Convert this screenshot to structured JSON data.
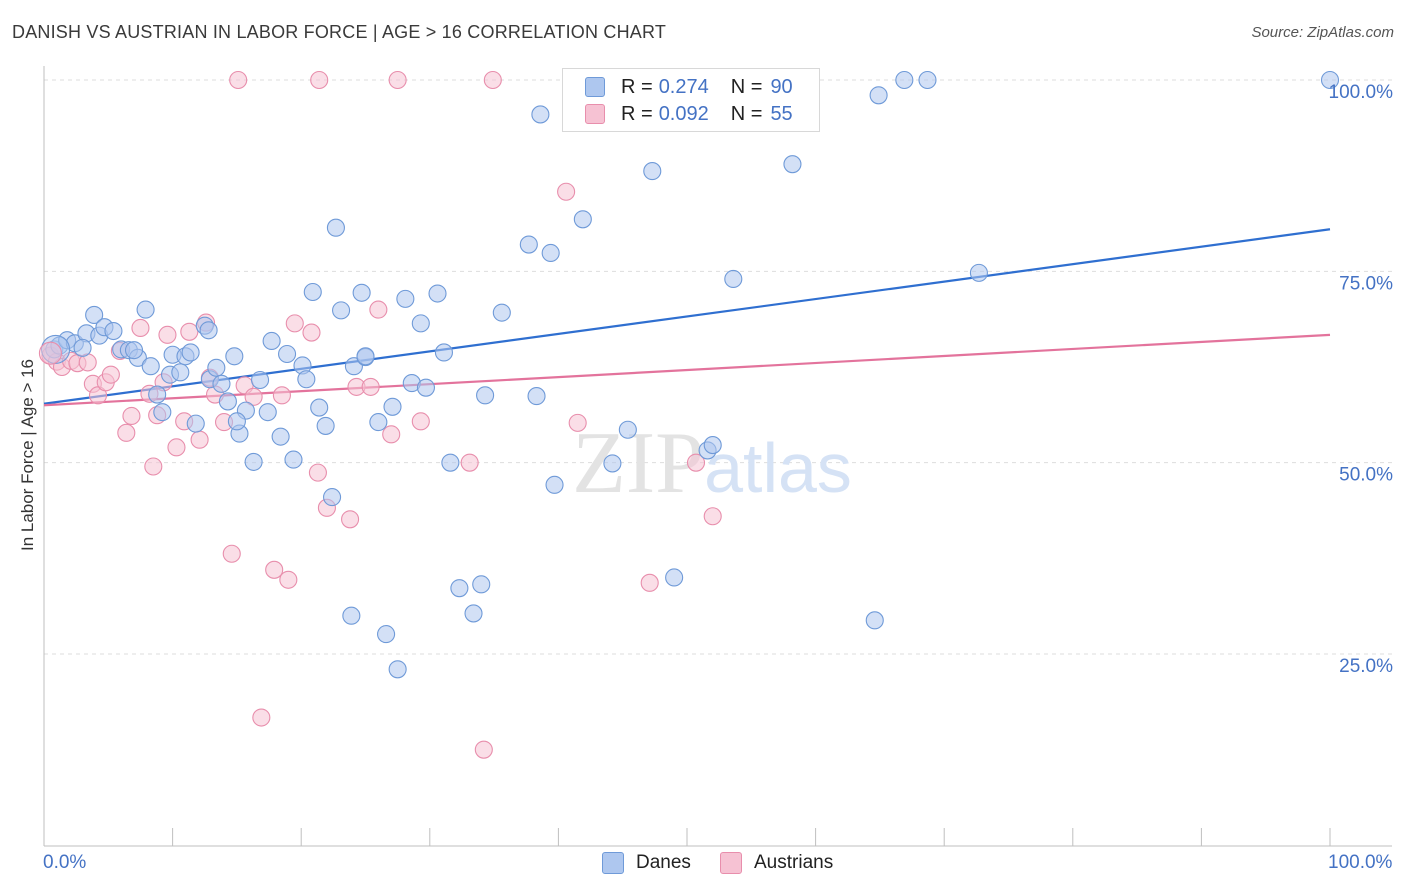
{
  "title": "DANISH VS AUSTRIAN IN LABOR FORCE | AGE > 16 CORRELATION CHART",
  "source": "Source: ZipAtlas.com",
  "watermark": "ZIPatlas",
  "colors": {
    "danes_fill": "#aec7ef",
    "danes_stroke": "#6f9ad8",
    "danes_line": "#2f6fd0",
    "austrians_fill": "#f6c2d3",
    "austrians_stroke": "#e88eac",
    "austrians_line": "#e3739c",
    "tick_label": "#4472c4",
    "grid": "#dddddd"
  },
  "legend": {
    "rows": [
      {
        "r_label": "R =",
        "r_value": "0.274",
        "n_label": "N =",
        "n_value": "90"
      },
      {
        "r_label": "R =",
        "r_value": "0.092",
        "n_label": "N =",
        "n_value": "55"
      }
    ]
  },
  "chart_data": {
    "type": "scatter",
    "title": "DANISH VS AUSTRIAN IN LABOR FORCE | AGE > 16 CORRELATION CHART",
    "xlabel": "",
    "ylabel": "In Labor Force | Age > 16",
    "xlim": [
      0,
      100
    ],
    "ylim": [
      0,
      105
    ],
    "x_tick_labels": [
      "0.0%",
      "100.0%"
    ],
    "y_tick_labels": [
      "25.0%",
      "50.0%",
      "75.0%",
      "100.0%"
    ],
    "y_ticks": [
      25,
      50,
      75,
      100
    ],
    "grid": true,
    "legend_position": "top-center",
    "series": [
      {
        "name": "Danes",
        "r": 0.274,
        "n": 90,
        "trend": {
          "x": [
            0,
            100
          ],
          "y": [
            57.7,
            80.5
          ]
        },
        "points": [
          [
            0.8,
            64.8
          ],
          [
            1.2,
            65.3
          ],
          [
            1.8,
            66.0
          ],
          [
            2.4,
            65.6
          ],
          [
            3.3,
            66.9
          ],
          [
            3.9,
            69.3
          ],
          [
            4.3,
            66.6
          ],
          [
            4.7,
            67.7
          ],
          [
            5.4,
            67.2
          ],
          [
            6.0,
            64.8
          ],
          [
            6.6,
            64.7
          ],
          [
            7.3,
            63.7
          ],
          [
            7.9,
            70.0
          ],
          [
            8.3,
            62.6
          ],
          [
            8.8,
            58.9
          ],
          [
            9.8,
            61.5
          ],
          [
            10.0,
            64.1
          ],
          [
            10.6,
            61.8
          ],
          [
            11.0,
            63.9
          ],
          [
            11.4,
            64.4
          ],
          [
            11.8,
            55.1
          ],
          [
            12.5,
            67.9
          ],
          [
            12.9,
            60.9
          ],
          [
            13.4,
            62.4
          ],
          [
            13.8,
            60.3
          ],
          [
            14.3,
            58.0
          ],
          [
            14.8,
            63.9
          ],
          [
            15.2,
            53.8
          ],
          [
            15.7,
            56.8
          ],
          [
            16.3,
            50.1
          ],
          [
            16.8,
            60.8
          ],
          [
            17.4,
            56.6
          ],
          [
            17.7,
            65.9
          ],
          [
            18.4,
            53.4
          ],
          [
            18.9,
            64.2
          ],
          [
            19.4,
            50.4
          ],
          [
            20.1,
            62.7
          ],
          [
            20.4,
            60.9
          ],
          [
            20.9,
            72.3
          ],
          [
            21.4,
            57.2
          ],
          [
            21.9,
            54.8
          ],
          [
            22.4,
            45.5
          ],
          [
            22.7,
            80.7
          ],
          [
            23.1,
            69.9
          ],
          [
            23.9,
            30.0
          ],
          [
            24.1,
            62.6
          ],
          [
            24.7,
            72.2
          ],
          [
            25.0,
            63.8
          ],
          [
            26.0,
            55.3
          ],
          [
            26.6,
            27.6
          ],
          [
            27.1,
            57.3
          ],
          [
            27.5,
            23.0
          ],
          [
            28.1,
            71.4
          ],
          [
            28.6,
            60.4
          ],
          [
            29.3,
            68.2
          ],
          [
            29.7,
            59.8
          ],
          [
            30.6,
            72.1
          ],
          [
            31.1,
            64.4
          ],
          [
            31.6,
            50.0
          ],
          [
            32.3,
            33.6
          ],
          [
            33.4,
            30.3
          ],
          [
            34.0,
            34.1
          ],
          [
            34.3,
            58.8
          ],
          [
            35.6,
            69.6
          ],
          [
            37.7,
            78.5
          ],
          [
            38.3,
            58.7
          ],
          [
            38.6,
            95.5
          ],
          [
            39.4,
            77.4
          ],
          [
            39.7,
            47.1
          ],
          [
            41.9,
            81.8
          ],
          [
            44.2,
            49.9
          ],
          [
            45.4,
            54.3
          ],
          [
            47.3,
            88.1
          ],
          [
            49.0,
            35.0
          ],
          [
            51.6,
            51.6
          ],
          [
            52.0,
            52.3
          ],
          [
            53.6,
            74.0
          ],
          [
            58.2,
            89.0
          ],
          [
            64.6,
            29.4
          ],
          [
            64.9,
            98.0
          ],
          [
            66.9,
            100.0
          ],
          [
            68.7,
            100.0
          ],
          [
            72.7,
            74.8
          ],
          [
            100.0,
            100.0
          ],
          [
            25.0,
            63.9
          ],
          [
            12.8,
            67.3
          ],
          [
            9.2,
            56.6
          ],
          [
            15.0,
            55.4
          ],
          [
            7.0,
            64.7
          ],
          [
            3.0,
            65.0
          ]
        ]
      },
      {
        "name": "Austrians",
        "r": 0.092,
        "n": 55,
        "trend": {
          "x": [
            0,
            100
          ],
          "y": [
            57.5,
            66.7
          ]
        },
        "points": [
          [
            0.5,
            64.0
          ],
          [
            1.0,
            63.2
          ],
          [
            1.4,
            62.5
          ],
          [
            2.1,
            63.3
          ],
          [
            2.6,
            63.0
          ],
          [
            3.4,
            63.1
          ],
          [
            3.8,
            60.3
          ],
          [
            4.2,
            58.8
          ],
          [
            4.8,
            60.5
          ],
          [
            5.2,
            61.5
          ],
          [
            5.9,
            64.6
          ],
          [
            6.4,
            53.9
          ],
          [
            6.8,
            56.1
          ],
          [
            7.5,
            67.6
          ],
          [
            8.2,
            59.0
          ],
          [
            8.5,
            49.5
          ],
          [
            8.8,
            56.2
          ],
          [
            9.3,
            60.5
          ],
          [
            9.6,
            66.7
          ],
          [
            10.3,
            52.0
          ],
          [
            10.9,
            55.4
          ],
          [
            11.3,
            67.1
          ],
          [
            12.1,
            53.0
          ],
          [
            12.6,
            68.3
          ],
          [
            12.9,
            61.1
          ],
          [
            13.3,
            58.9
          ],
          [
            14.0,
            55.3
          ],
          [
            14.6,
            38.1
          ],
          [
            15.1,
            100.0
          ],
          [
            15.6,
            60.1
          ],
          [
            16.3,
            58.6
          ],
          [
            16.9,
            16.7
          ],
          [
            17.9,
            36.0
          ],
          [
            18.5,
            58.8
          ],
          [
            19.0,
            34.7
          ],
          [
            19.5,
            68.2
          ],
          [
            20.8,
            67.0
          ],
          [
            21.3,
            48.7
          ],
          [
            22.0,
            44.1
          ],
          [
            23.8,
            42.6
          ],
          [
            24.3,
            59.9
          ],
          [
            25.4,
            59.9
          ],
          [
            21.4,
            100.0
          ],
          [
            26.0,
            70.0
          ],
          [
            27.5,
            100.0
          ],
          [
            27.0,
            53.7
          ],
          [
            29.3,
            55.4
          ],
          [
            33.1,
            50.0
          ],
          [
            34.2,
            12.5
          ],
          [
            34.9,
            100.0
          ],
          [
            40.6,
            85.4
          ],
          [
            41.5,
            55.2
          ],
          [
            47.1,
            34.3
          ],
          [
            50.7,
            50.0
          ],
          [
            52.0,
            43.0
          ]
        ]
      }
    ]
  }
}
